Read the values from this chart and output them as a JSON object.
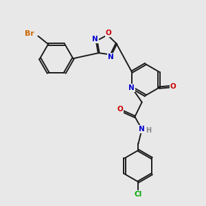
{
  "background_color": "#e8e8e8",
  "bond_color": "#1a1a1a",
  "atom_colors": {
    "Br": "#cc6600",
    "N": "#0000cc",
    "O": "#cc0000",
    "Cl": "#00aa00",
    "H": "#888888",
    "C": "#1a1a1a"
  },
  "font_size": 7.5,
  "bond_width": 1.4,
  "dbo": 0.055
}
